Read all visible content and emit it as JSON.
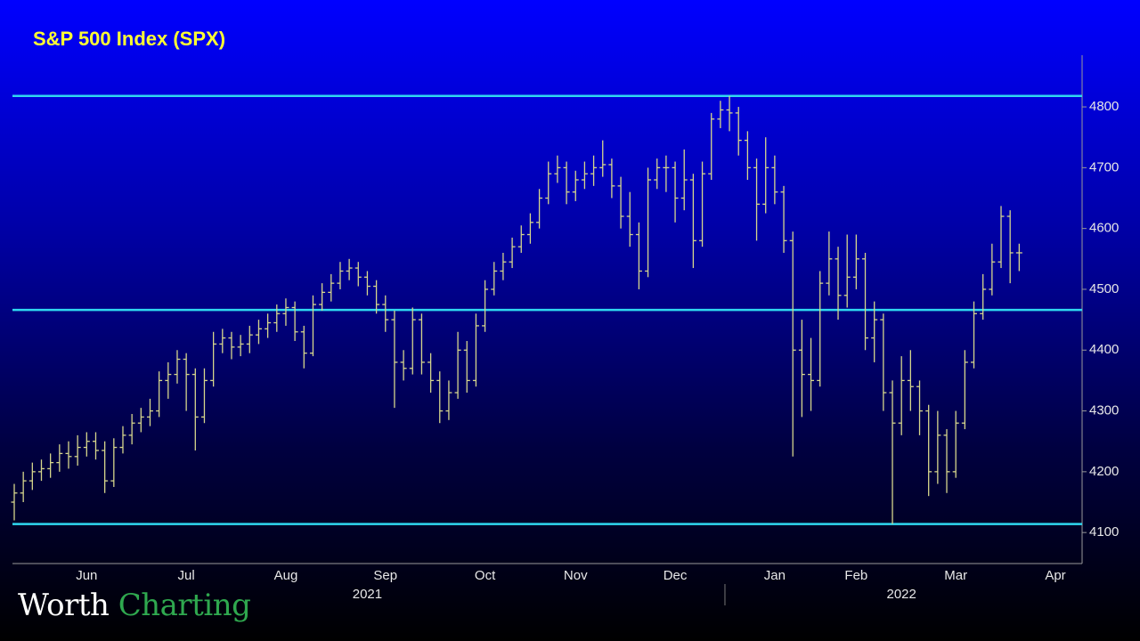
{
  "chart_data": {
    "type": "ohlc",
    "title": "S&P 500 Index (SPX)",
    "categories": [
      null,
      null,
      null,
      null,
      null,
      null,
      null,
      null,
      "Jun",
      null,
      null,
      null,
      null,
      null,
      null,
      null,
      null,
      null,
      null,
      "Jul",
      null,
      null,
      null,
      null,
      null,
      null,
      null,
      null,
      null,
      null,
      "Aug",
      null,
      null,
      null,
      null,
      null,
      null,
      null,
      null,
      null,
      null,
      "Sep",
      null,
      null,
      null,
      null,
      null,
      null,
      null,
      null,
      null,
      null,
      "Oct",
      null,
      null,
      null,
      null,
      null,
      null,
      null,
      null,
      null,
      "Nov",
      null,
      null,
      null,
      null,
      null,
      null,
      null,
      null,
      null,
      null,
      "Dec",
      null,
      null,
      null,
      null,
      null,
      null,
      null,
      null,
      null,
      null,
      "Jan",
      null,
      null,
      null,
      null,
      null,
      null,
      null,
      null,
      "Feb",
      null,
      null,
      null,
      null,
      null,
      null,
      null,
      null,
      null,
      null,
      "Mar",
      null,
      null,
      null,
      null,
      null,
      null,
      null,
      null,
      null,
      null,
      "Apr"
    ],
    "year_categories": [
      null,
      null,
      null,
      null,
      null,
      null,
      null,
      null,
      null,
      null,
      null,
      null,
      null,
      null,
      null,
      null,
      null,
      null,
      null,
      null,
      null,
      null,
      null,
      null,
      null,
      null,
      null,
      null,
      null,
      null,
      null,
      null,
      null,
      null,
      null,
      null,
      null,
      null,
      null,
      "2021",
      null,
      null,
      null,
      null,
      null,
      null,
      null,
      null,
      null,
      null,
      null,
      null,
      null,
      null,
      null,
      null,
      null,
      null,
      null,
      null,
      null,
      null,
      null,
      null,
      null,
      null,
      null,
      null,
      null,
      null,
      null,
      null,
      null,
      null,
      null,
      null,
      null,
      null,
      null,
      null,
      null,
      null,
      null,
      null,
      null,
      null,
      null,
      null,
      null,
      null,
      null,
      null,
      null,
      null,
      null,
      null,
      null,
      null,
      "2022",
      null,
      null,
      null,
      null,
      null,
      null,
      null,
      null,
      null,
      null,
      null,
      null,
      null,
      null,
      null,
      null,
      null
    ],
    "open": [
      4150,
      4165,
      4185,
      4200,
      4205,
      4215,
      4230,
      4225,
      4240,
      4250,
      4235,
      4185,
      4240,
      4260,
      4280,
      4290,
      4300,
      4350,
      4360,
      4385,
      4360,
      4290,
      4350,
      4410,
      4420,
      4405,
      4410,
      4425,
      4435,
      4445,
      4460,
      4470,
      4430,
      4395,
      4475,
      4495,
      4510,
      4530,
      4535,
      4520,
      4505,
      4475,
      4450,
      4380,
      4370,
      4450,
      4380,
      4350,
      4300,
      4330,
      4400,
      4350,
      4440,
      4500,
      4530,
      4545,
      4570,
      4590,
      4610,
      4650,
      4690,
      4700,
      4660,
      4680,
      4690,
      4700,
      4705,
      4670,
      4620,
      4590,
      4530,
      4680,
      4700,
      4700,
      4650,
      4680,
      4580,
      4690,
      4780,
      4795,
      4790,
      4745,
      4700,
      4640,
      4700,
      4660,
      4580,
      4400,
      4360,
      4350,
      4510,
      4550,
      4490,
      4520,
      4550,
      4420,
      4450,
      4330,
      4280,
      4350,
      4340,
      4300,
      4200,
      4260,
      4200,
      4280,
      4380,
      4460,
      4500,
      4545,
      4620,
      4560,
      null,
      null,
      null,
      null
    ],
    "high": [
      4180,
      4200,
      4215,
      4220,
      4230,
      4245,
      4250,
      4260,
      4265,
      4265,
      4250,
      4255,
      4275,
      4295,
      4305,
      4320,
      4365,
      4380,
      4400,
      4395,
      4370,
      4370,
      4430,
      4435,
      4430,
      4425,
      4440,
      4450,
      4460,
      4475,
      4485,
      4480,
      4440,
      4490,
      4510,
      4525,
      4545,
      4550,
      4545,
      4530,
      4515,
      4490,
      4465,
      4400,
      4470,
      4460,
      4395,
      4365,
      4350,
      4430,
      4415,
      4460,
      4515,
      4545,
      4560,
      4585,
      4605,
      4625,
      4665,
      4710,
      4720,
      4710,
      4695,
      4710,
      4720,
      4745,
      4715,
      4685,
      4660,
      4610,
      4700,
      4715,
      4720,
      4710,
      4730,
      4690,
      4710,
      4790,
      4810,
      4818,
      4800,
      4760,
      4715,
      4750,
      4720,
      4670,
      4595,
      4450,
      4420,
      4530,
      4595,
      4570,
      4590,
      4590,
      4560,
      4480,
      4460,
      4350,
      4390,
      4400,
      4350,
      4310,
      4300,
      4270,
      4300,
      4400,
      4480,
      4525,
      4575,
      4637,
      4630,
      4575,
      null,
      null,
      null,
      null
    ],
    "low": [
      4120,
      4150,
      4170,
      4185,
      4190,
      4200,
      4205,
      4210,
      4225,
      4220,
      4165,
      4175,
      4230,
      4245,
      4265,
      4275,
      4290,
      4320,
      4345,
      4300,
      4235,
      4280,
      4340,
      4395,
      4385,
      4390,
      4395,
      4410,
      4420,
      4430,
      4440,
      4415,
      4370,
      4390,
      4465,
      4480,
      4500,
      4515,
      4505,
      4490,
      4460,
      4430,
      4305,
      4350,
      4360,
      4360,
      4330,
      4280,
      4285,
      4320,
      4330,
      4340,
      4430,
      4490,
      4515,
      4535,
      4560,
      4575,
      4600,
      4640,
      4675,
      4640,
      4645,
      4665,
      4670,
      4685,
      4650,
      4600,
      4570,
      4500,
      4520,
      4665,
      4660,
      4610,
      4630,
      4535,
      4570,
      4680,
      4765,
      4760,
      4720,
      4680,
      4580,
      4625,
      4640,
      4560,
      4225,
      4290,
      4300,
      4340,
      4490,
      4450,
      4470,
      4500,
      4400,
      4380,
      4300,
      4114,
      4260,
      4300,
      4260,
      4160,
      4180,
      4165,
      4190,
      4270,
      4370,
      4450,
      4490,
      4535,
      4510,
      4530,
      null,
      null,
      null,
      null
    ],
    "close": [
      4165,
      4185,
      4200,
      4205,
      4215,
      4230,
      4225,
      4240,
      4250,
      4235,
      4185,
      4240,
      4260,
      4280,
      4290,
      4300,
      4350,
      4360,
      4385,
      4360,
      4290,
      4350,
      4410,
      4420,
      4405,
      4410,
      4425,
      4435,
      4445,
      4460,
      4470,
      4430,
      4395,
      4475,
      4495,
      4510,
      4530,
      4535,
      4520,
      4505,
      4475,
      4450,
      4380,
      4370,
      4450,
      4380,
      4350,
      4300,
      4330,
      4400,
      4350,
      4440,
      4500,
      4530,
      4545,
      4570,
      4590,
      4610,
      4650,
      4690,
      4700,
      4660,
      4680,
      4690,
      4700,
      4705,
      4670,
      4620,
      4590,
      4530,
      4680,
      4700,
      4700,
      4650,
      4680,
      4580,
      4690,
      4780,
      4795,
      4790,
      4745,
      4700,
      4640,
      4700,
      4660,
      4580,
      4400,
      4360,
      4350,
      4510,
      4550,
      4490,
      4520,
      4550,
      4420,
      4450,
      4330,
      4280,
      4350,
      4340,
      4300,
      4200,
      4260,
      4200,
      4280,
      4380,
      4460,
      4500,
      4545,
      4620,
      4560,
      4560,
      null,
      null,
      null,
      null
    ],
    "color": "#d6d68c",
    "hlines": [
      4818,
      4466,
      4114
    ],
    "hline_color": "#2fd8f0",
    "ylim": [
      4049,
      4885
    ],
    "yticks": [
      4100,
      4200,
      4300,
      4400,
      4500,
      4600,
      4700,
      4800
    ],
    "axis_side": "right",
    "grid": false
  },
  "watermark": {
    "first": "Worth",
    "second": "Charting"
  }
}
